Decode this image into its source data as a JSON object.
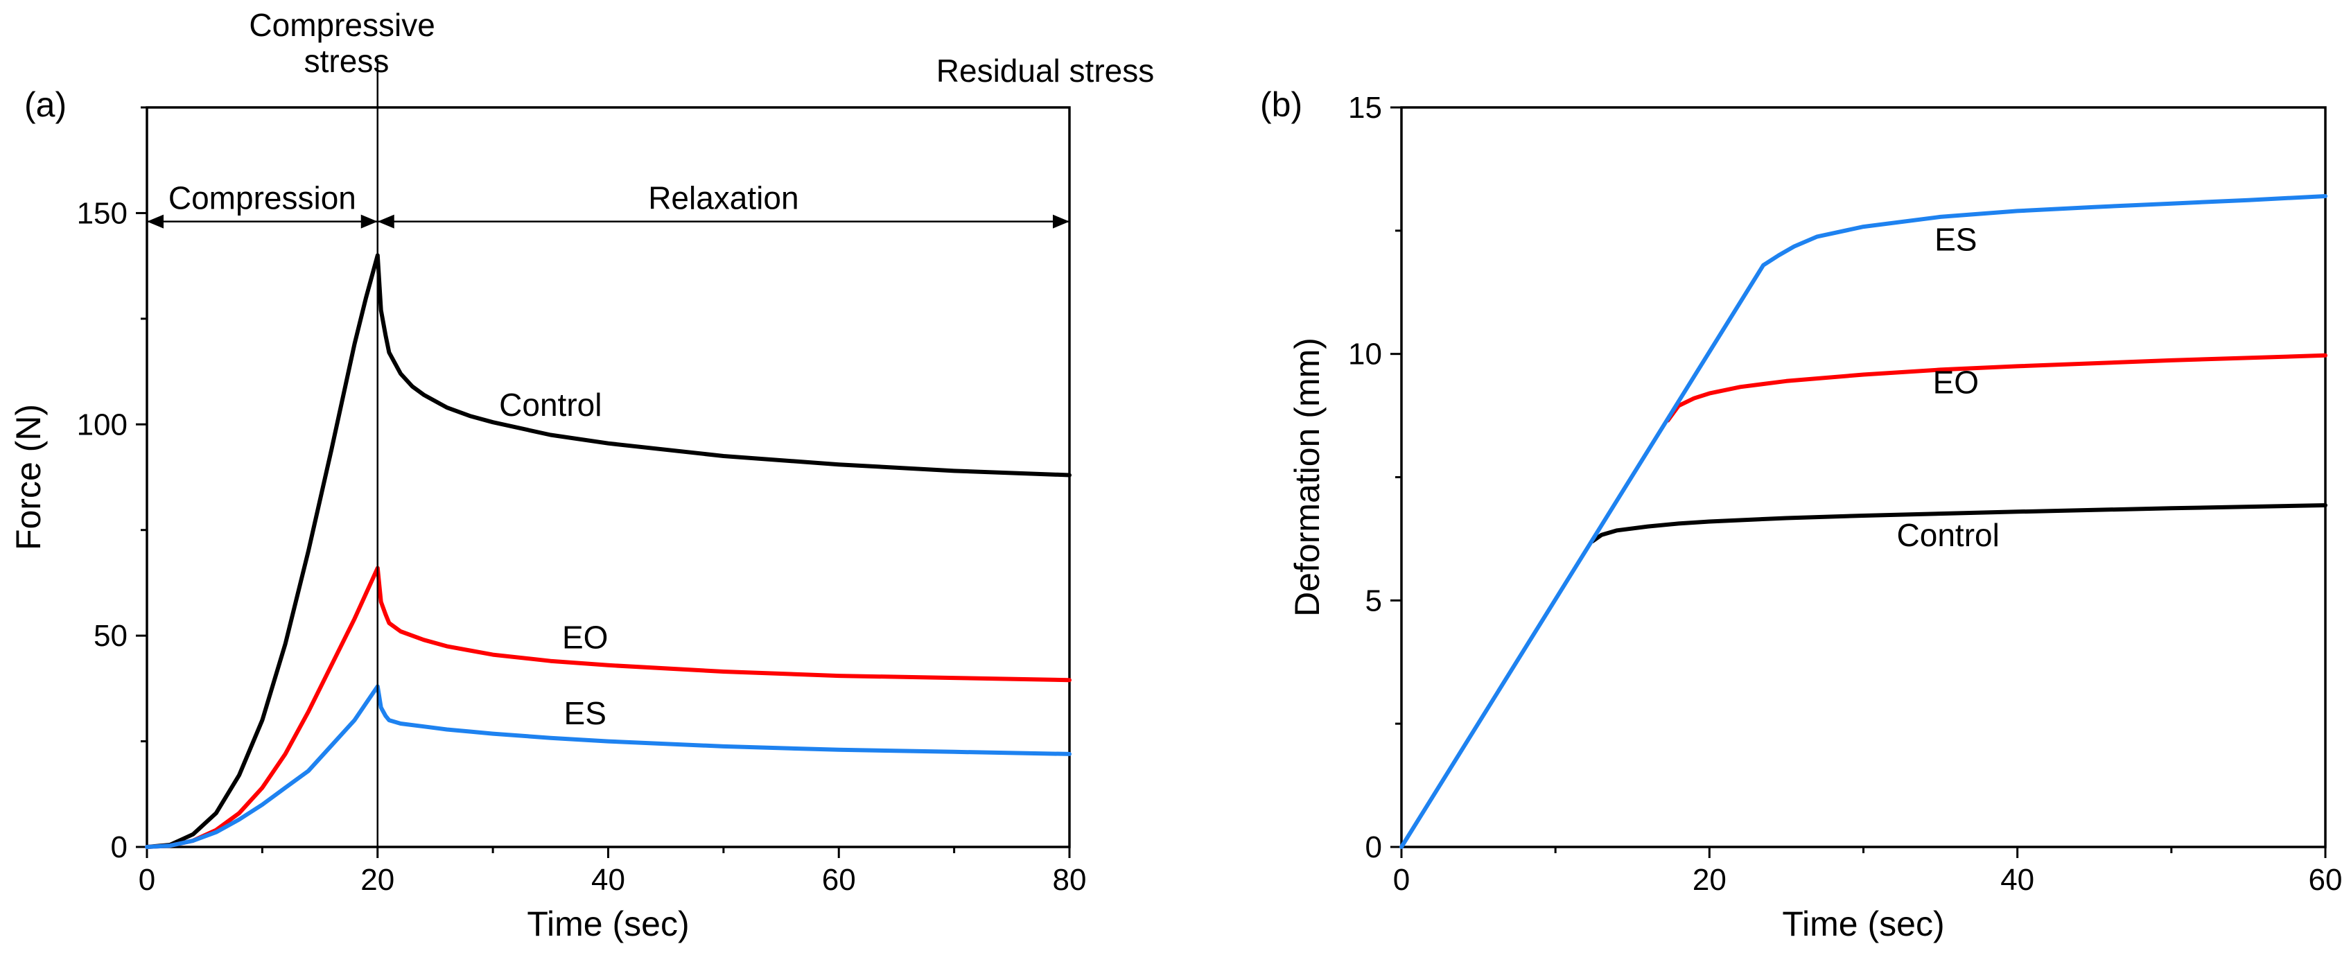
{
  "chart_data": [
    {
      "type": "line",
      "panel_label": "(a)",
      "xlabel": "Time (sec)",
      "ylabel": "Force (N)",
      "xlim": [
        0,
        80
      ],
      "ylim": [
        0,
        175
      ],
      "xticks": [
        0,
        20,
        40,
        60,
        80
      ],
      "yticks": [
        0,
        50,
        100,
        150
      ],
      "x_tick_labels": [
        "0",
        "20",
        "40",
        "60",
        "80"
      ],
      "y_tick_labels": [
        "0",
        "50",
        "100",
        "150"
      ],
      "grid": false,
      "annotations": {
        "top_compressive": "Compressive\nstress",
        "top_residual": "Residual stress",
        "compression": "Compression",
        "relaxation": "Relaxation",
        "divider_x": 20,
        "arrow_y": 148
      },
      "series": [
        {
          "name": "Control",
          "color": "#000000",
          "label_at": [
            35,
            102
          ],
          "x": [
            0,
            2,
            4,
            6,
            8,
            10,
            12,
            14,
            16,
            18,
            19,
            20,
            20.3,
            20.7,
            21,
            22,
            23,
            24,
            26,
            28,
            30,
            35,
            40,
            50,
            60,
            70,
            80
          ],
          "values": [
            0,
            0.5,
            3,
            8,
            17,
            30,
            48,
            70,
            94,
            119,
            130,
            140,
            127,
            121,
            117,
            112,
            109,
            107,
            104,
            102,
            100.5,
            97.5,
            95.5,
            92.5,
            90.5,
            89,
            88
          ]
        },
        {
          "name": "EO",
          "color": "#ff0000",
          "label_at": [
            38,
            47
          ],
          "x": [
            0,
            2,
            4,
            6,
            8,
            10,
            12,
            14,
            16,
            18,
            19,
            20,
            20.3,
            20.7,
            21,
            22,
            24,
            26,
            28,
            30,
            35,
            40,
            50,
            60,
            70,
            80
          ],
          "values": [
            0,
            0.3,
            1.5,
            4,
            8,
            14,
            22,
            32,
            43,
            54,
            60,
            66,
            58,
            55,
            53,
            51,
            49,
            47.5,
            46.5,
            45.5,
            44,
            43,
            41.5,
            40.5,
            40,
            39.5
          ]
        },
        {
          "name": "ES",
          "color": "#1e82f0",
          "label_at": [
            38,
            29
          ],
          "x": [
            0,
            2,
            4,
            6,
            8,
            10,
            12,
            14,
            16,
            18,
            19,
            20,
            20.3,
            20.7,
            21,
            22,
            24,
            26,
            28,
            30,
            35,
            40,
            50,
            60,
            70,
            80
          ],
          "values": [
            0,
            0.3,
            1.5,
            3.5,
            6.5,
            10,
            14,
            18,
            24,
            30,
            34,
            38,
            33,
            31,
            30,
            29.2,
            28.5,
            27.8,
            27.3,
            26.8,
            25.8,
            25,
            23.8,
            23,
            22.5,
            22
          ]
        }
      ]
    },
    {
      "type": "line",
      "panel_label": "(b)",
      "xlabel": "Time (sec)",
      "ylabel": "Deformation (mm)",
      "xlim": [
        0,
        60
      ],
      "ylim": [
        0,
        15
      ],
      "xticks": [
        0,
        20,
        40,
        60
      ],
      "yticks": [
        0,
        5,
        10,
        15
      ],
      "x_tick_labels": [
        "0",
        "20",
        "40",
        "60"
      ],
      "y_tick_labels": [
        "0",
        "5",
        "10",
        "15"
      ],
      "grid": false,
      "series": [
        {
          "name": "Control",
          "color": "#000000",
          "label_at": [
            35.5,
            6.1
          ],
          "x": [
            12.4,
            13,
            14,
            16,
            18,
            20,
            25,
            30,
            40,
            50,
            60
          ],
          "values": [
            6.2,
            6.33,
            6.42,
            6.5,
            6.56,
            6.6,
            6.67,
            6.72,
            6.8,
            6.87,
            6.93
          ]
        },
        {
          "name": "EO",
          "color": "#ff0000",
          "label_at": [
            36,
            9.2
          ],
          "x": [
            17.3,
            18,
            19,
            20,
            22,
            25,
            30,
            35,
            40,
            50,
            60
          ],
          "values": [
            8.65,
            8.95,
            9.1,
            9.2,
            9.33,
            9.45,
            9.58,
            9.68,
            9.75,
            9.87,
            9.97
          ]
        },
        {
          "name": "ES",
          "color": "#1e82f0",
          "label_at": [
            36,
            12.1
          ],
          "x": [
            0,
            23.5,
            24.5,
            25.5,
            27,
            30,
            35,
            40,
            45,
            50,
            55,
            60
          ],
          "values": [
            0,
            11.8,
            12.0,
            12.18,
            12.38,
            12.58,
            12.78,
            12.9,
            12.98,
            13.05,
            13.12,
            13.2
          ]
        }
      ]
    }
  ]
}
